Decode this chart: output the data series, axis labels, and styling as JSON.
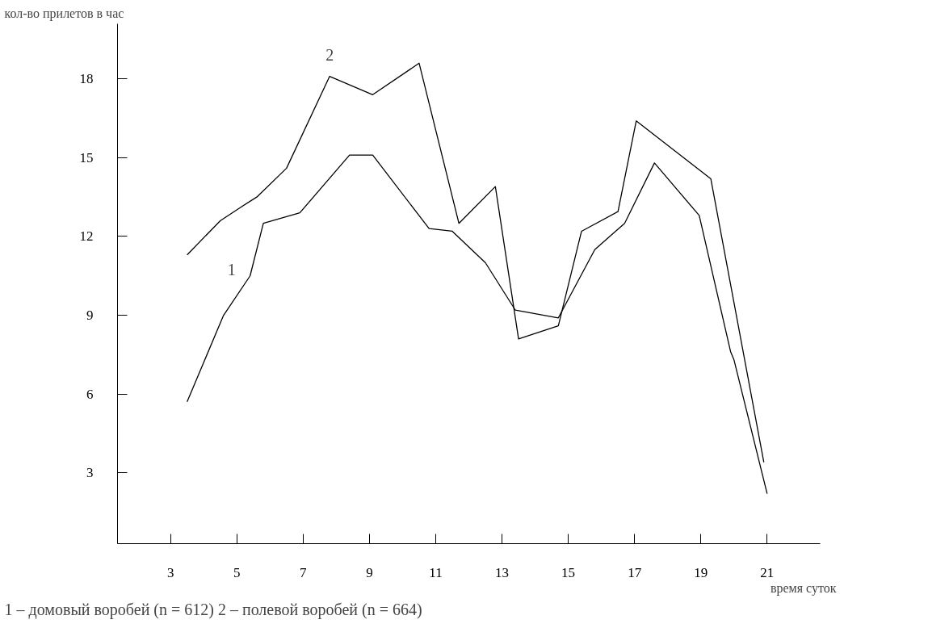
{
  "chart_data": {
    "type": "line",
    "ylabel": "кол-во прилетов в час",
    "xlabel": "время суток",
    "xlim": [
      1.4,
      22.6
    ],
    "ylim": [
      0.3,
      20.1
    ],
    "xticks": [
      3,
      5,
      7,
      9,
      11,
      13,
      15,
      17,
      19,
      21
    ],
    "yticks": [
      3,
      6,
      9,
      12,
      15,
      18
    ],
    "grid": false,
    "marker": "none",
    "line_style": "solid",
    "series": [
      {
        "name": "1",
        "color": "#000000",
        "x": [
          3.5,
          4.0,
          4.6,
          5.4,
          5.8,
          6.9,
          8.4,
          9.1,
          10.8,
          11.5,
          12.5,
          13.4,
          14.7,
          15.8,
          16.7,
          17.6,
          18.95,
          19.9,
          20.0,
          21.0
        ],
        "values": [
          5.7,
          7.2,
          9.0,
          10.5,
          12.5,
          12.9,
          15.1,
          15.1,
          12.3,
          12.2,
          11.0,
          9.2,
          8.9,
          11.5,
          12.5,
          14.8,
          12.8,
          7.6,
          7.3,
          2.2
        ]
      },
      {
        "name": "2",
        "color": "#000000",
        "x": [
          3.5,
          4.5,
          5.1,
          5.6,
          6.5,
          7.8,
          9.1,
          10.5,
          11.7,
          12.8,
          13.5,
          14.7,
          15.4,
          16.5,
          17.05,
          19.3,
          20.9
        ],
        "values": [
          11.3,
          12.6,
          13.1,
          13.5,
          14.6,
          18.1,
          17.4,
          18.6,
          12.5,
          13.9,
          8.1,
          8.6,
          12.2,
          12.95,
          16.4,
          14.2,
          3.4
        ]
      }
    ],
    "annotations": [
      "1 – домовый воробей (n = 612)  2 – полевой воробей (n = 664)"
    ]
  }
}
